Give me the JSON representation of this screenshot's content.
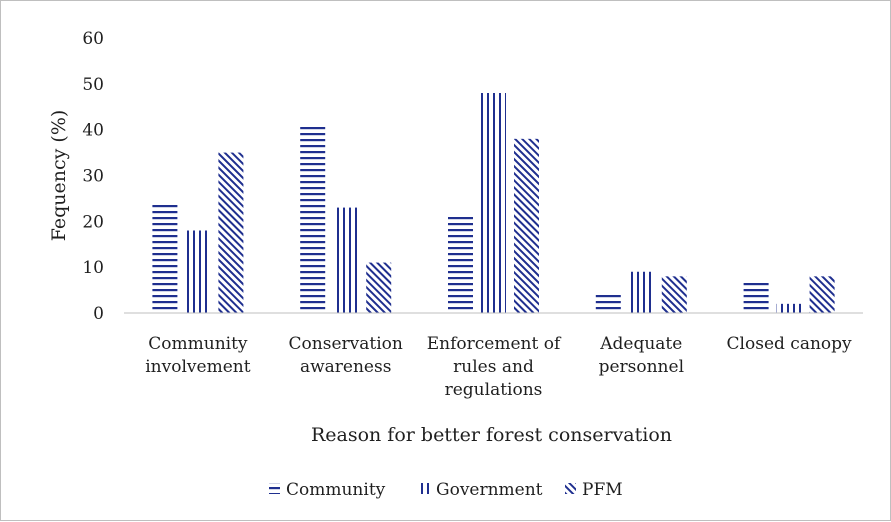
{
  "chart_data": {
    "type": "bar",
    "title": "",
    "xlabel": "Reason for better  forest conservation",
    "ylabel": "Fequency  (%)",
    "ylim": [
      0,
      60
    ],
    "yticks": [
      0,
      10,
      20,
      30,
      40,
      50,
      60
    ],
    "grid": false,
    "legend_position": "bottom",
    "categories": [
      [
        "Community",
        "involvement"
      ],
      [
        "Conservation",
        "awareness"
      ],
      [
        "Enforcement of",
        "rules and",
        "regulations"
      ],
      [
        "Adequate",
        "personnel"
      ],
      [
        "Closed canopy"
      ]
    ],
    "series": [
      {
        "name": "Community",
        "pattern": "horizontal",
        "color": "#1f2f8f",
        "values": [
          24,
          41,
          21,
          4,
          7
        ]
      },
      {
        "name": "Government",
        "pattern": "vertical",
        "color": "#1f2f8f",
        "values": [
          18,
          23,
          48,
          9,
          2
        ]
      },
      {
        "name": "PFM",
        "pattern": "diagonal",
        "color": "#1f2f8f",
        "values": [
          35,
          11,
          38,
          8,
          8
        ]
      }
    ]
  }
}
